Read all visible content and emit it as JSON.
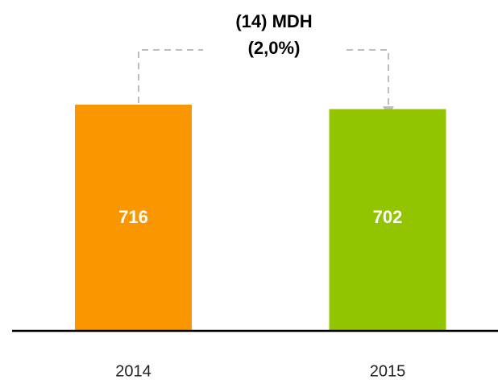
{
  "chart_data": {
    "type": "bar",
    "annotation": [
      "(14) MDH",
      "(2,0%)"
    ],
    "categories": [
      "2014",
      "2015"
    ],
    "values": [
      716,
      702
    ],
    "colors": [
      "#fa9600",
      "#92c400"
    ]
  }
}
